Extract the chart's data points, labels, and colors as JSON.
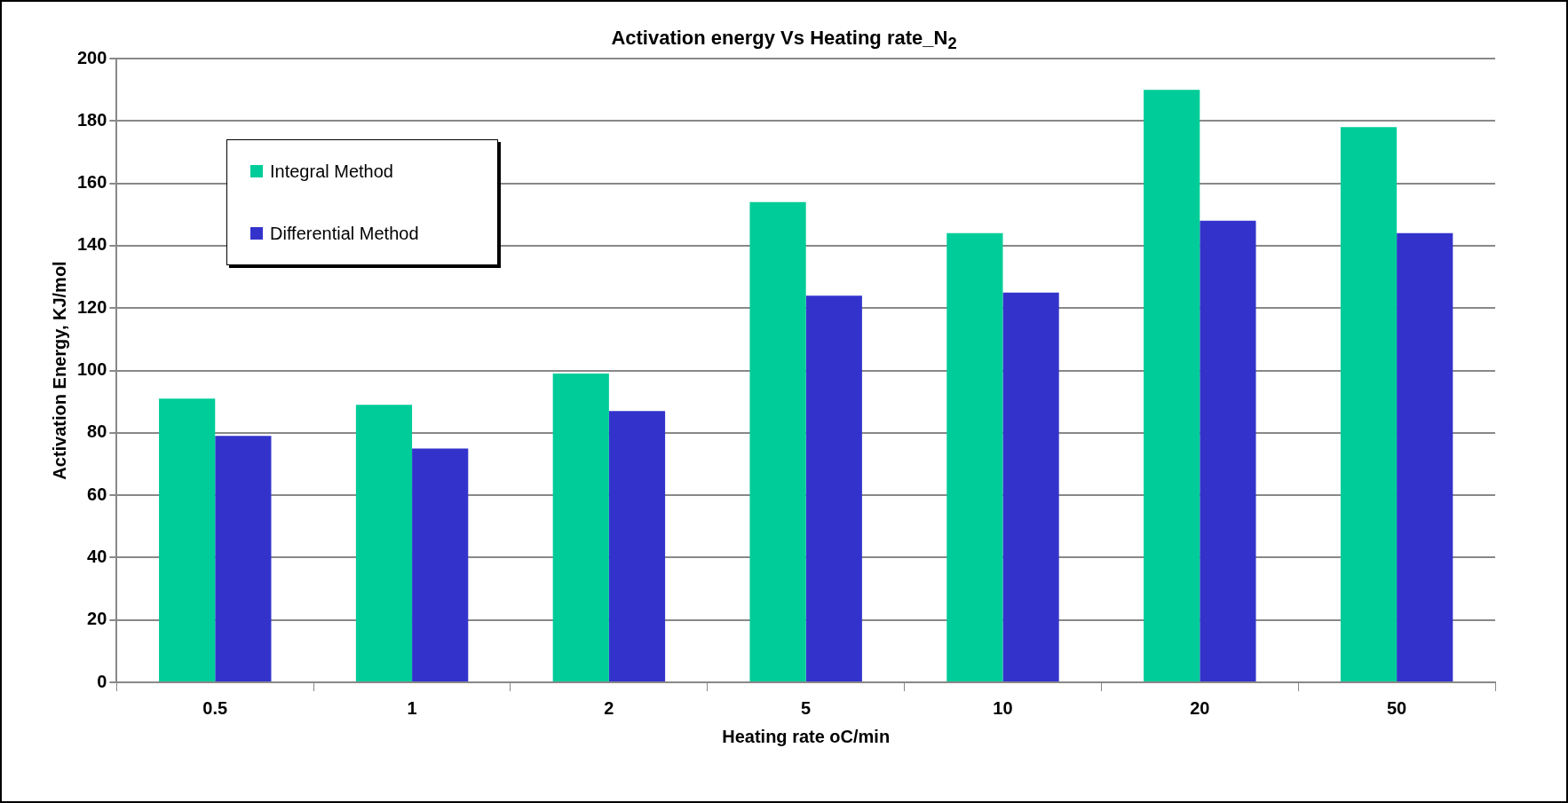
{
  "chart_data": {
    "type": "bar",
    "title": "Activation energy Vs Heating rate_N$_{2}$",
    "xlabel": "Heating rate oC/min",
    "ylabel": "Activation Energy, KJ/mol",
    "categories": [
      "0.5",
      "1",
      "2",
      "5",
      "10",
      "20",
      "50"
    ],
    "series": [
      {
        "name": "Integral Method",
        "color": "#00cc99",
        "values": [
          91,
          89,
          99,
          154,
          144,
          190,
          178
        ]
      },
      {
        "name": "Differential Method",
        "color": "#3333cc",
        "values": [
          79,
          75,
          87,
          124,
          125,
          148,
          144
        ]
      }
    ],
    "ylim": [
      0,
      200
    ],
    "yticks": [
      0,
      20,
      40,
      60,
      80,
      100,
      120,
      140,
      160,
      180,
      200
    ],
    "grid": "y",
    "legend": "top left"
  }
}
